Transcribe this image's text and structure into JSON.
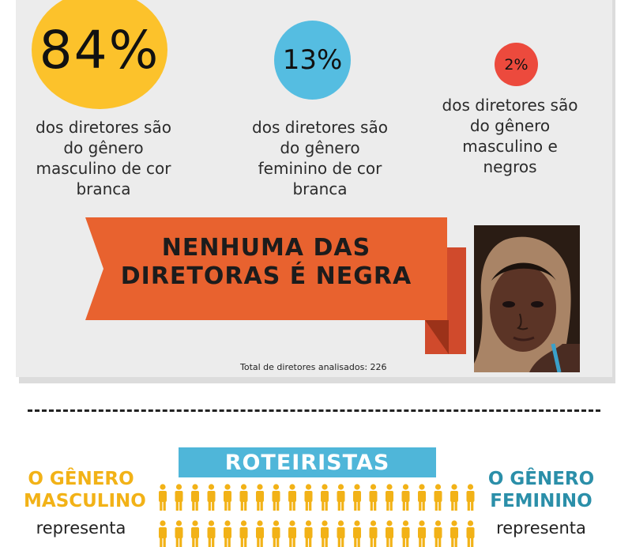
{
  "stats": [
    {
      "value": "84%",
      "text": "dos diretores são do gênero masculino de cor branca",
      "color": "#fcc22b"
    },
    {
      "value": "13%",
      "text": "dos diretores são do gênero feminino de cor branca",
      "color": "#55bde1"
    },
    {
      "value": "2%",
      "text": "dos diretores são do gênero masculino e negros",
      "color": "#ec4a3d"
    }
  ],
  "ribbon": {
    "text": "NENHUMA DAS DIRETORAS É NEGRA",
    "color": "#e8622f"
  },
  "portrait_icon": "woman-portrait-illustration",
  "total": "Total de diretores analisados: 226",
  "roteiristas": {
    "banner": "ROTEIRISTAS",
    "male_title": "O GÊNERO MASCULINO",
    "male_sub": "representa",
    "female_title": "O GÊNERO FEMININO",
    "female_sub": "representa",
    "person_icon": "person-icon",
    "person_color": "#f2b217"
  }
}
